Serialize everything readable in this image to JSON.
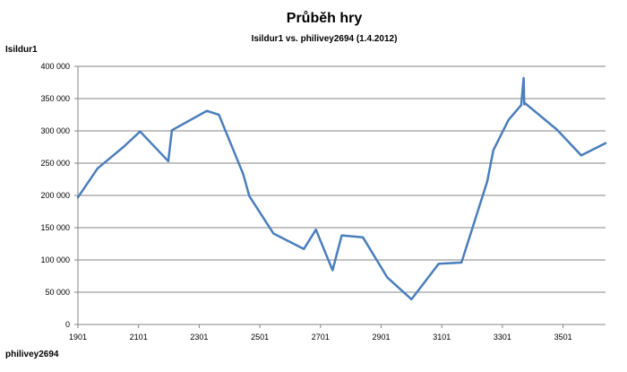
{
  "chart_data": {
    "type": "line",
    "title": "Průběh hry",
    "subtitle": "Isildur1 vs. philivey2694 (1.4.2012)",
    "ylabel": "Isildur1",
    "xlabel": "philivey2694",
    "xlim": [
      1901,
      3641
    ],
    "ylim": [
      0,
      400000
    ],
    "grid": true,
    "x_ticks": [
      "1901",
      "2101",
      "2301",
      "2501",
      "2701",
      "2901",
      "3101",
      "3301",
      "3501"
    ],
    "y_ticks": [
      "0",
      "50 000",
      "100 000",
      "150 000",
      "200 000",
      "250 000",
      "300 000",
      "350 000",
      "400 000"
    ],
    "line_color": "#4a7ebb",
    "series": [
      {
        "x": [
          1901,
          1966,
          2051,
          2106,
          2199,
          2211,
          2326,
          2366,
          2446,
          2466,
          2546,
          2646,
          2686,
          2741,
          2771,
          2841,
          2921,
          3001,
          3091,
          3166,
          3251,
          3271,
          3321,
          3363,
          3371,
          3373,
          3375,
          3481,
          3561,
          3641
        ],
        "y": [
          197000,
          242000,
          275000,
          299000,
          253000,
          301000,
          331000,
          325000,
          233000,
          199000,
          141000,
          117000,
          147000,
          84000,
          138000,
          135000,
          73000,
          39000,
          94000,
          96000,
          222000,
          270000,
          317000,
          340000,
          382000,
          341000,
          343000,
          302000,
          262000,
          281000
        ]
      }
    ]
  }
}
